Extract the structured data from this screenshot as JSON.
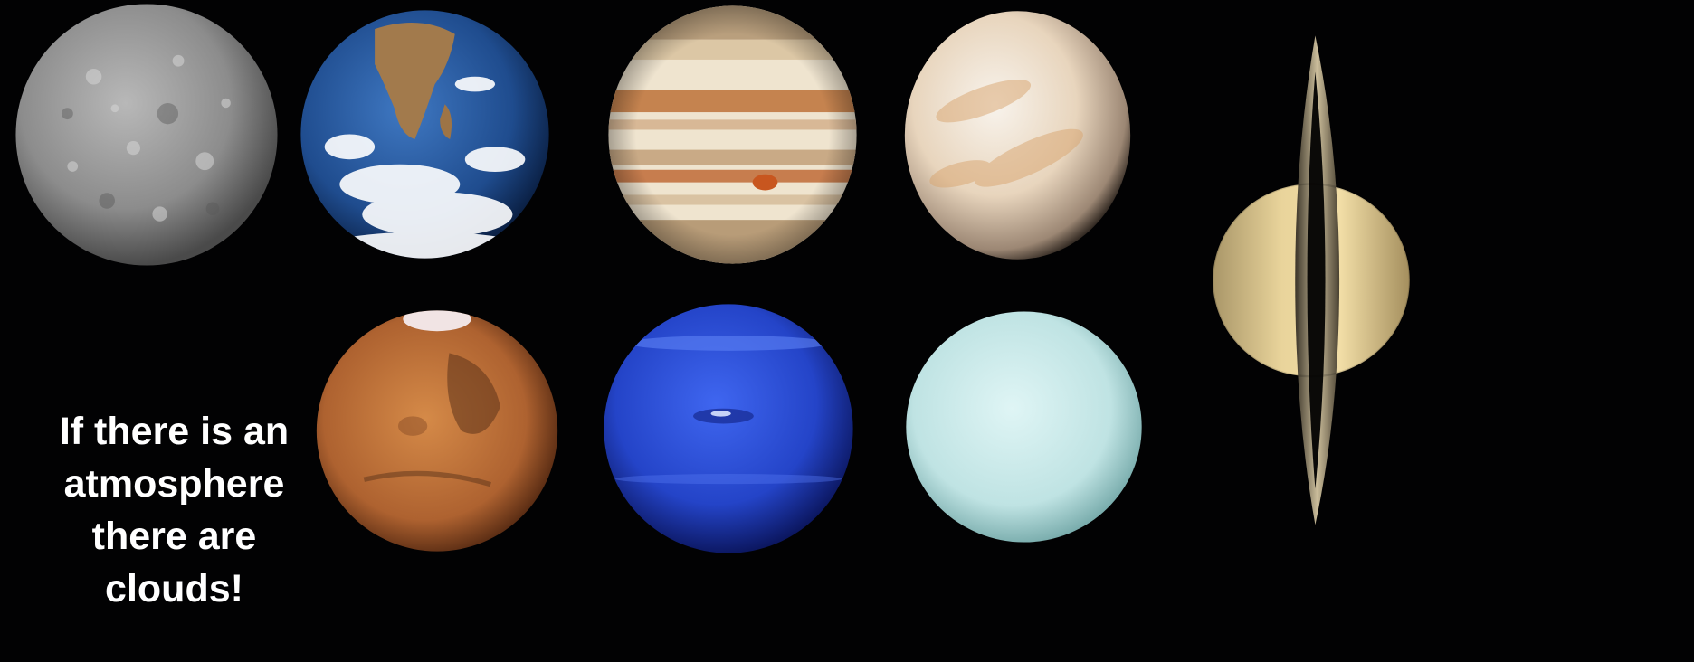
{
  "caption": {
    "text": "If there is an\natmosphere\nthere are\nclouds!",
    "color": "#ffffff"
  },
  "planets": [
    {
      "name": "Mercury",
      "palette": [
        "#c9c9c9",
        "#8a8a8a",
        "#4b4b4b"
      ]
    },
    {
      "name": "Earth",
      "palette": [
        "#ffffff",
        "#2c5fa3",
        "#0f2a55"
      ]
    },
    {
      "name": "Jupiter",
      "palette": [
        "#f1e7d4",
        "#c98a5a",
        "#7a5a3c"
      ]
    },
    {
      "name": "Venus",
      "palette": [
        "#f6efe6",
        "#d9b58c",
        "#5a4a3c"
      ]
    },
    {
      "name": "Mars",
      "palette": [
        "#e09552",
        "#a75a26",
        "#3e1c0c"
      ]
    },
    {
      "name": "Neptune",
      "palette": [
        "#6d8ff5",
        "#2a4fd6",
        "#0c1d70"
      ]
    },
    {
      "name": "Uranus",
      "palette": [
        "#e2f6f6",
        "#bfe6e6",
        "#6fa9a9"
      ]
    },
    {
      "name": "Saturn",
      "palette": [
        "#f4dfa6",
        "#c8b07a",
        "#5a4a2a"
      ]
    }
  ]
}
